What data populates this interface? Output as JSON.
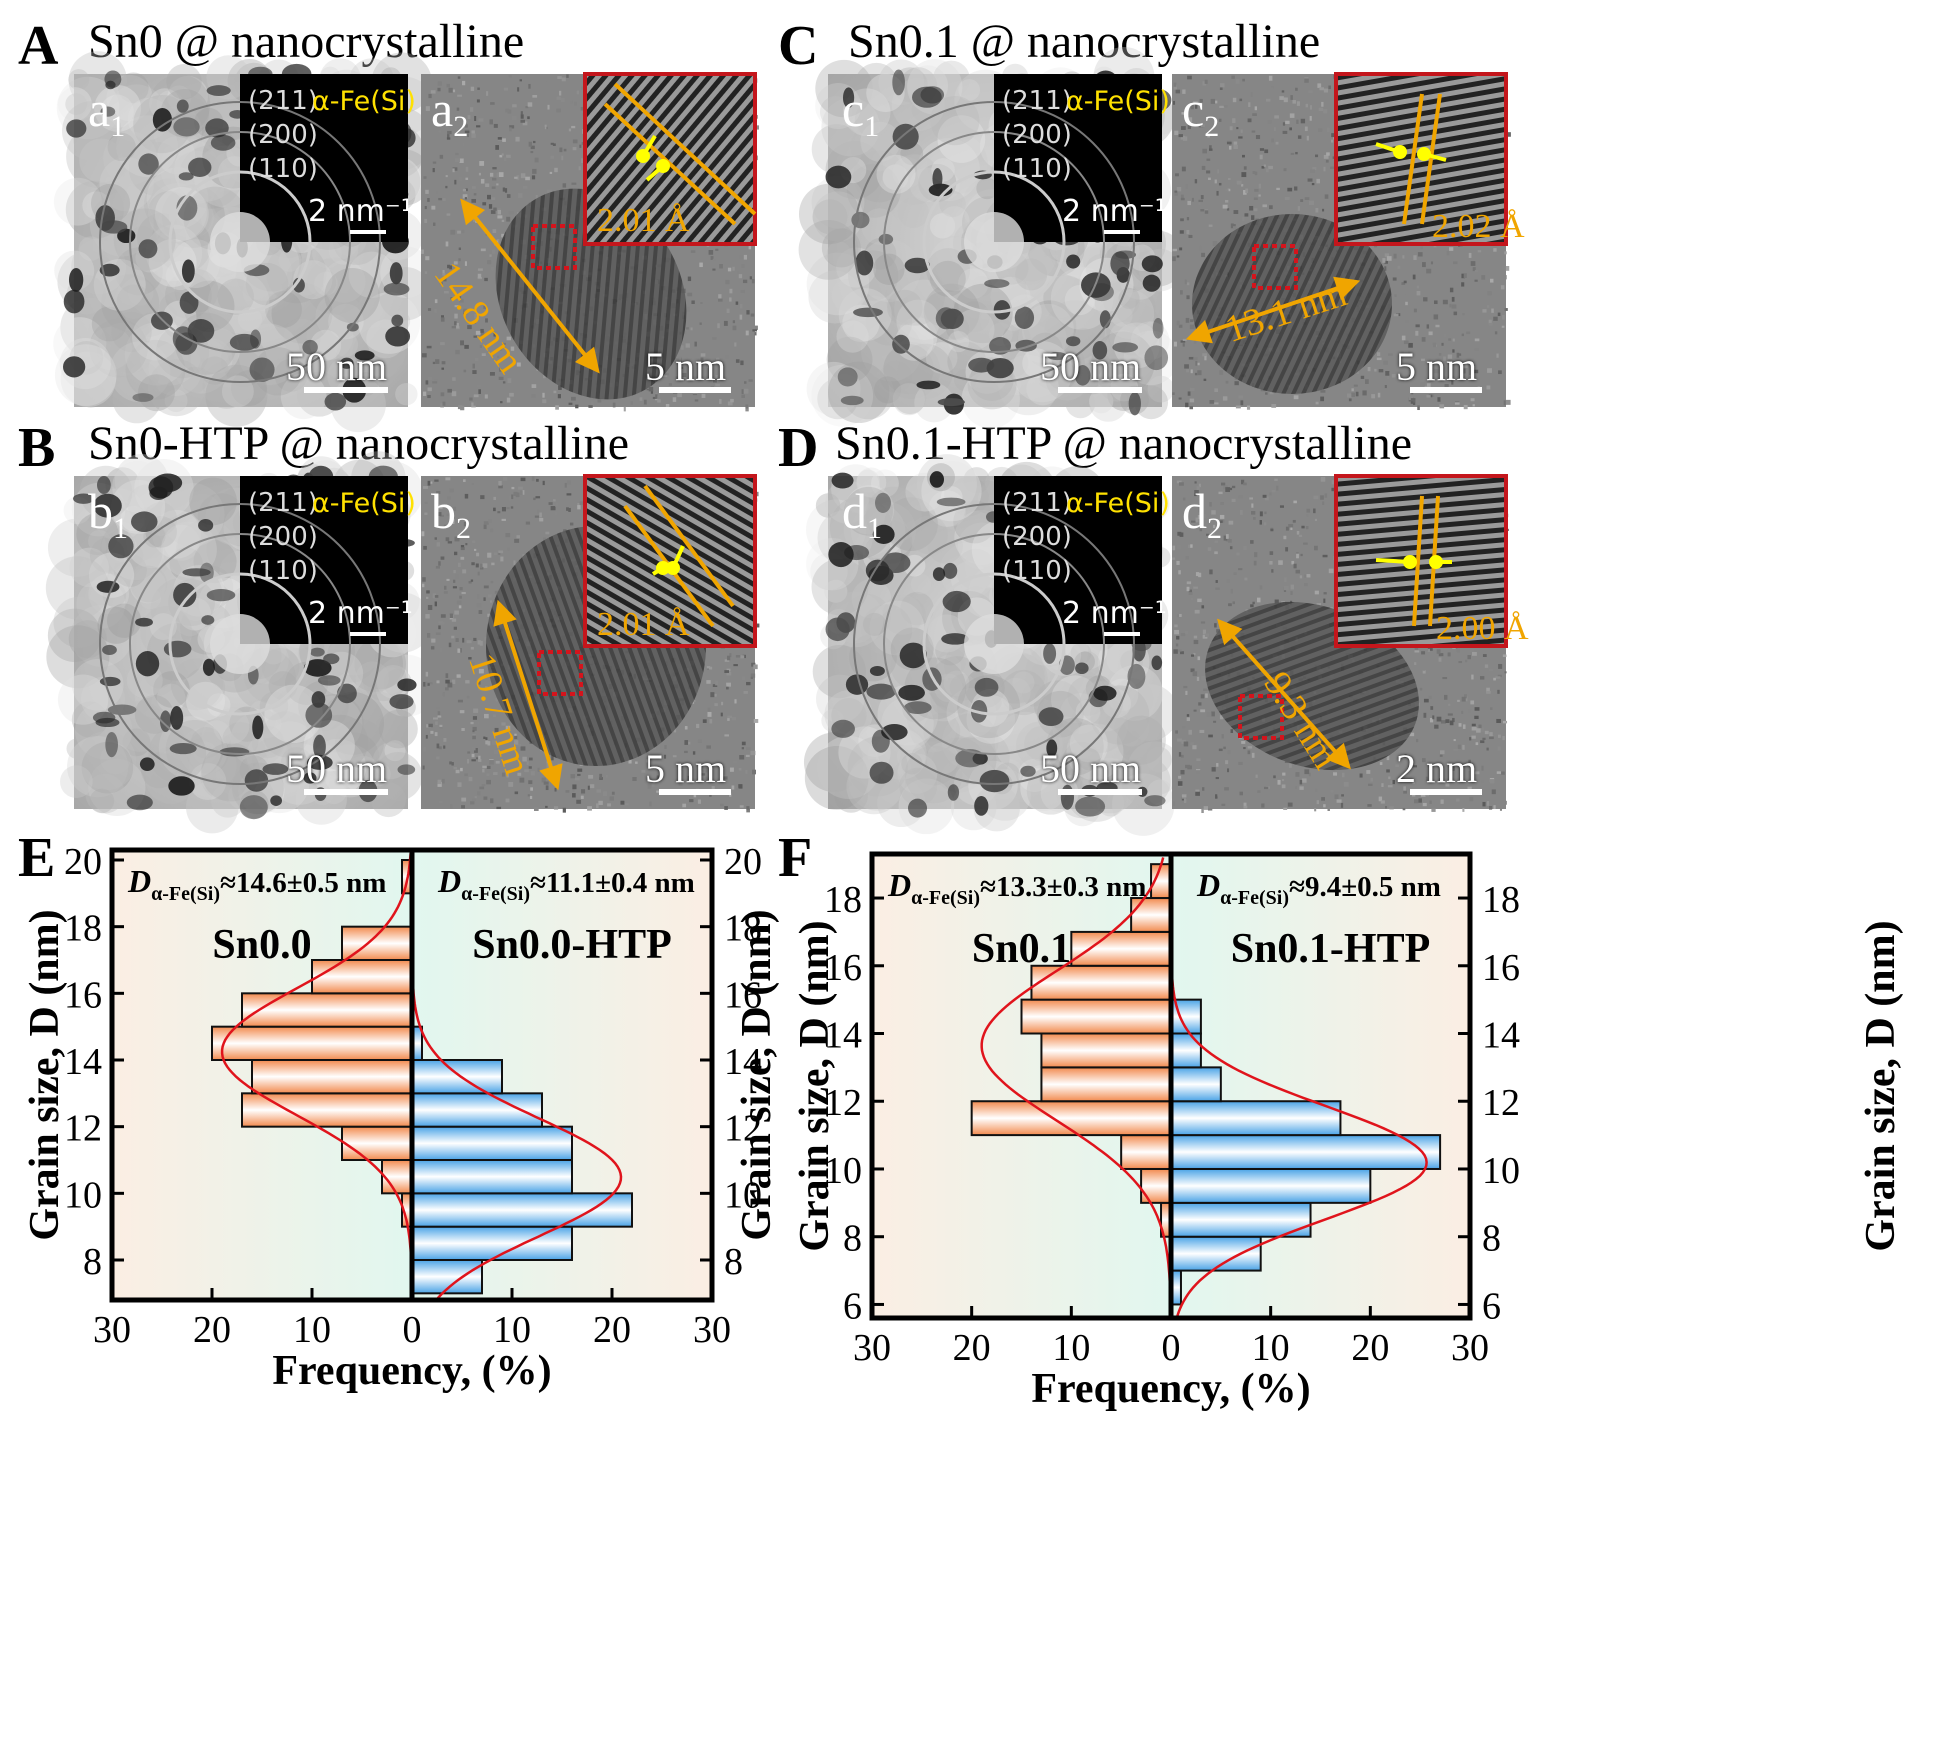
{
  "panels": {
    "A": {
      "letter": "A",
      "title": "Sn0 @ nanocrystalline"
    },
    "B": {
      "letter": "B",
      "title": "Sn0-HTP @ nanocrystalline"
    },
    "C": {
      "letter": "C",
      "title": "Sn0.1 @ nanocrystalline"
    },
    "D": {
      "letter": "D",
      "title": "Sn0.1-HTP @ nanocrystalline"
    },
    "E": {
      "letter": "E"
    },
    "F": {
      "letter": "F"
    }
  },
  "saed": {
    "rings": [
      "(211)",
      "(200)",
      "(110)"
    ],
    "phase": "α-Fe(Si)",
    "scale": "2 nm⁻¹"
  },
  "images": {
    "a1": {
      "base": "a",
      "sub": "1",
      "scale": "50 nm"
    },
    "a2": {
      "base": "a",
      "sub": "2",
      "scale": "5 nm",
      "d_spacing": "2.01 Å",
      "size": "14.8 nm"
    },
    "b1": {
      "base": "b",
      "sub": "1",
      "scale": "50 nm"
    },
    "b2": {
      "base": "b",
      "sub": "2",
      "scale": "5 nm",
      "d_spacing": "2.01 Å",
      "size": "10.7 nm"
    },
    "c1": {
      "base": "c",
      "sub": "1",
      "scale": "50 nm"
    },
    "c2": {
      "base": "c",
      "sub": "2",
      "scale": "5 nm",
      "d_spacing": "2.02 Å",
      "size": "13.1 nm"
    },
    "d1": {
      "base": "d",
      "sub": "1",
      "scale": "50 nm"
    },
    "d2": {
      "base": "d",
      "sub": "2",
      "scale": "2 nm",
      "d_spacing": "2.00 Å",
      "size": "9.3 nm"
    }
  },
  "chart_data": [
    {
      "type": "bar",
      "orientation": "horizontal-mirrored",
      "xlabel": "Frequency, (%)",
      "ylabel": "Grain size, D (nm)",
      "ylim": [
        6.8,
        20.3
      ],
      "yticks": [
        8,
        10,
        12,
        14,
        16,
        18,
        20
      ],
      "xlim_each_side": [
        0,
        30
      ],
      "xticks": [
        30,
        20,
        10,
        0,
        10,
        20,
        30
      ],
      "grid": false,
      "series": [
        {
          "name": "Sn0.0",
          "side": "left",
          "color": "#f0905a",
          "stat": "D≈14.6±0.5 nm",
          "d_base": "D",
          "d_sub": "α-Fe(Si)",
          "d_value": "≈14.6±0.5 nm",
          "bins": [
            [
              9,
              1
            ],
            [
              10,
              3
            ],
            [
              11,
              7
            ],
            [
              12,
              17
            ],
            [
              13,
              16
            ],
            [
              14,
              20
            ],
            [
              15,
              17
            ],
            [
              16,
              10
            ],
            [
              17,
              7
            ],
            [
              19,
              1
            ]
          ]
        },
        {
          "name": "Sn0.0-HTP",
          "side": "right",
          "color": "#5aa9e6",
          "stat": "D≈11.1±0.4 nm",
          "d_base": "D",
          "d_sub": "α-Fe(Si)",
          "d_value": "≈11.1±0.4 nm",
          "bins": [
            [
              7,
              7
            ],
            [
              8,
              16
            ],
            [
              9,
              22
            ],
            [
              10,
              16
            ],
            [
              11,
              16
            ],
            [
              12,
              13
            ],
            [
              13,
              9
            ],
            [
              14,
              1
            ]
          ]
        }
      ]
    },
    {
      "type": "bar",
      "orientation": "horizontal-mirrored",
      "xlabel": "Frequency, (%)",
      "ylabel": "Grain size, D (nm)",
      "ylim": [
        5.6,
        19.3
      ],
      "yticks": [
        6,
        8,
        10,
        12,
        14,
        16,
        18
      ],
      "xlim_each_side": [
        0,
        30
      ],
      "xticks": [
        30,
        20,
        10,
        0,
        10,
        20,
        30
      ],
      "grid": false,
      "series": [
        {
          "name": "Sn0.1",
          "side": "left",
          "color": "#f0905a",
          "stat": "D≈13.3±0.3 nm",
          "d_base": "D",
          "d_sub": "α-Fe(Si)",
          "d_value": "≈13.3±0.3 nm",
          "bins": [
            [
              8,
              1
            ],
            [
              9,
              3
            ],
            [
              10,
              5
            ],
            [
              11,
              20
            ],
            [
              12,
              13
            ],
            [
              13,
              13
            ],
            [
              14,
              15
            ],
            [
              15,
              14
            ],
            [
              16,
              10
            ],
            [
              17,
              4
            ],
            [
              18,
              2
            ]
          ]
        },
        {
          "name": "Sn0.1-HTP",
          "side": "right",
          "color": "#5aa9e6",
          "stat": "D≈9.4±0.5 nm",
          "d_base": "D",
          "d_sub": "α-Fe(Si)",
          "d_value": "≈9.4±0.5 nm",
          "bins": [
            [
              6,
              1
            ],
            [
              7,
              9
            ],
            [
              8,
              14
            ],
            [
              9,
              20
            ],
            [
              10,
              27
            ],
            [
              11,
              17
            ],
            [
              12,
              5
            ],
            [
              13,
              3
            ],
            [
              14,
              3
            ]
          ]
        }
      ]
    }
  ]
}
